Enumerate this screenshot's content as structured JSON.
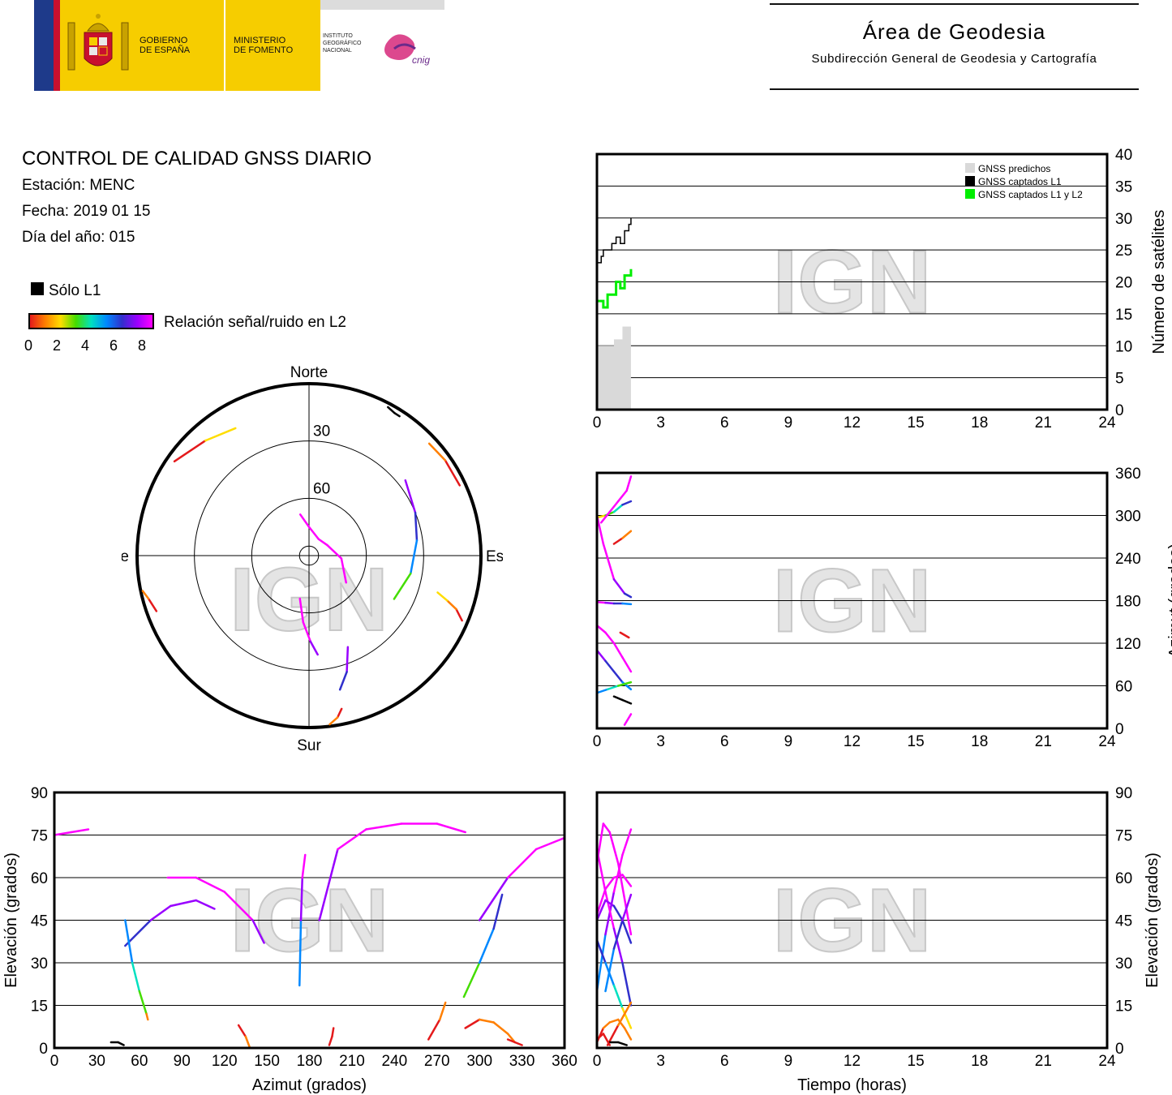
{
  "header": {
    "gov_line1": "GOBIERNO",
    "gov_line2": "DE ESPAÑA",
    "ministry_line1": "MINISTERIO",
    "ministry_line2": "DE FOMENTO",
    "institute_line1": "INSTITUTO",
    "institute_line2": "GEOGRÁFICO",
    "institute_line3": "NACIONAL",
    "cnig_logo_text": "cnig",
    "area_title": "Área de Geodesia",
    "area_subtitle": "Subdirección General de Geodesia y Cartografía",
    "colors": {
      "blue": "#1e3a8a",
      "red": "#c8102e",
      "yellow": "#f6cd00"
    }
  },
  "report": {
    "title": "CONTROL DE CALIDAD GNSS DIARIO",
    "station": "Estación: MENC",
    "date": "Fecha: 2019 01 15",
    "doy": "Día del año: 015"
  },
  "legend": {
    "l1_only": "Sólo L1",
    "snr_label": "Relación señal/ruido en L2",
    "snr_ticks": [
      "0",
      "2",
      "4",
      "6",
      "8"
    ],
    "snr_colors": [
      "#e41a1c",
      "#ff7f00",
      "#ffdd00",
      "#44dd00",
      "#00e0c0",
      "#0088ff",
      "#3030cc",
      "#9900ff",
      "#ff00ff"
    ]
  },
  "watermark": "IGN",
  "chart_data": [
    {
      "id": "skyplot",
      "type": "scatter",
      "projection": "polar",
      "labels": {
        "north": "Norte",
        "south": "Sur",
        "east": "Este",
        "west": "Oeste"
      },
      "ring_labels": [
        "30",
        "60"
      ],
      "rings_elev": [
        0,
        30,
        60,
        85
      ],
      "tracks": [
        {
          "az": [
            305,
            318,
            330
          ],
          "el": [
            4,
            9,
            13
          ],
          "snr": [
            0,
            2,
            3
          ]
        },
        {
          "az": [
            250,
            255,
            258
          ],
          "el": [
            5,
            3,
            1
          ],
          "snr": [
            0,
            1,
            1
          ]
        },
        {
          "az": [
            28,
            31,
            33
          ],
          "el": [
            2,
            3,
            3
          ],
          "snr": [
            -1,
            -1,
            -1
          ]
        },
        {
          "az": [
            65,
            55,
            47
          ],
          "el": [
            3,
            3,
            4
          ],
          "snr": [
            0,
            1,
            3
          ]
        },
        {
          "az": [
            52,
            68,
            82,
            100,
            117
          ],
          "el": [
            26,
            30,
            33,
            36,
            40
          ],
          "snr": [
            7,
            6,
            5,
            3,
            0
          ]
        },
        {
          "az": [
            113,
            110,
            108,
            106
          ],
          "el": [
            3,
            8,
            14,
            20
          ],
          "snr": [
            0,
            1,
            2,
            4
          ]
        },
        {
          "az": [
            157,
            162,
            167
          ],
          "el": [
            38,
            26,
            18
          ],
          "snr": [
            7,
            6,
            5
          ]
        },
        {
          "az": [
            168,
            170,
            173
          ],
          "el": [
            8,
            4,
            1
          ],
          "snr": [
            0,
            1,
            1
          ]
        },
        {
          "az": [
            192,
            185,
            179,
            175
          ],
          "el": [
            67,
            55,
            45,
            38
          ],
          "snr": [
            8,
            8,
            7,
            7
          ]
        },
        {
          "az": [
            -12,
            0,
            30,
            60,
            95,
            126
          ],
          "el": [
            68,
            75,
            80,
            79,
            73,
            66
          ],
          "snr": [
            8,
            8,
            8,
            8,
            8,
            8
          ]
        }
      ]
    },
    {
      "id": "satellite_count",
      "type": "area",
      "xlabel": "",
      "ylabel": "Número de satélites",
      "xlim": [
        0,
        24
      ],
      "ylim": [
        0,
        40
      ],
      "xticks": [
        "0",
        "3",
        "6",
        "9",
        "12",
        "15",
        "18",
        "21",
        "24"
      ],
      "yticks": [
        "0",
        "5",
        "10",
        "15",
        "20",
        "25",
        "30",
        "35",
        "40"
      ],
      "series": [
        {
          "name": "GNSS predichos",
          "color": "#d9d9d9",
          "x": [
            0,
            0.1,
            0.5,
            0.8,
            1.0,
            1.2,
            1.4,
            1.6
          ],
          "y": [
            10,
            10,
            10,
            11,
            11,
            13,
            13,
            14
          ]
        },
        {
          "name": "GNSS captados L1",
          "color": "#000000",
          "x": [
            0,
            0.1,
            0.2,
            0.3,
            0.5,
            0.7,
            0.9,
            1.1,
            1.3,
            1.5,
            1.6
          ],
          "y": [
            23,
            23,
            24,
            25,
            25,
            26,
            27,
            26,
            28,
            29,
            30
          ]
        },
        {
          "name": "GNSS captados L1 y L2",
          "color": "#00ee00",
          "x": [
            0,
            0.1,
            0.3,
            0.5,
            0.7,
            0.9,
            1.1,
            1.3,
            1.5,
            1.6
          ],
          "y": [
            17,
            17,
            16,
            18,
            18,
            20,
            19,
            21,
            21,
            22
          ]
        }
      ]
    },
    {
      "id": "azimuth_time",
      "type": "scatter",
      "xlabel": "",
      "ylabel": "Azimut (grados)",
      "xlim": [
        0,
        24
      ],
      "ylim": [
        0,
        360
      ],
      "xticks": [
        "0",
        "3",
        "6",
        "9",
        "12",
        "15",
        "18",
        "21",
        "24"
      ],
      "yticks": [
        "0",
        "60",
        "120",
        "180",
        "240",
        "300",
        "360"
      ],
      "tracks": [
        {
          "t": [
            0,
            0.4,
            0.8,
            1.2,
            1.6
          ],
          "v": [
            297,
            300,
            305,
            315,
            320
          ],
          "snr": [
            2,
            3,
            4,
            6,
            7
          ]
        },
        {
          "t": [
            0.2,
            0.6,
            1.0,
            1.4,
            1.6
          ],
          "v": [
            290,
            305,
            320,
            335,
            355
          ],
          "snr": [
            8,
            8,
            8,
            8,
            8
          ]
        },
        {
          "t": [
            0,
            0.3,
            0.8,
            1.3,
            1.6
          ],
          "v": [
            300,
            260,
            210,
            190,
            185
          ],
          "snr": [
            8,
            8,
            7,
            6,
            6
          ]
        },
        {
          "t": [
            0.8,
            1.2,
            1.6
          ],
          "v": [
            260,
            268,
            278
          ],
          "snr": [
            0,
            1,
            1
          ]
        },
        {
          "t": [
            0,
            0.4,
            0.8,
            1.2,
            1.6
          ],
          "v": [
            178,
            177,
            176,
            176,
            175
          ],
          "snr": [
            8,
            7,
            6,
            5,
            4
          ]
        },
        {
          "t": [
            0,
            0.4,
            0.8,
            1.2,
            1.6
          ],
          "v": [
            145,
            135,
            120,
            100,
            80
          ],
          "snr": [
            8,
            8,
            8,
            8,
            7
          ]
        },
        {
          "t": [
            0,
            0.4,
            0.8,
            1.2,
            1.6
          ],
          "v": [
            110,
            95,
            80,
            65,
            55
          ],
          "snr": [
            7,
            6,
            6,
            5,
            5
          ]
        },
        {
          "t": [
            0,
            0.5,
            1.0,
            1.6
          ],
          "v": [
            50,
            55,
            60,
            65
          ],
          "snr": [
            5,
            4,
            3,
            2
          ]
        },
        {
          "t": [
            0.8,
            1.2,
            1.6
          ],
          "v": [
            45,
            40,
            35
          ],
          "snr": [
            -1,
            -1,
            -1
          ]
        },
        {
          "t": [
            1.3,
            1.6
          ],
          "v": [
            5,
            20
          ],
          "snr": [
            8,
            8
          ]
        },
        {
          "t": [
            1.1,
            1.5
          ],
          "v": [
            135,
            128
          ],
          "snr": [
            0,
            2
          ]
        }
      ]
    },
    {
      "id": "elevation_azimuth",
      "type": "scatter",
      "xlabel": "Azimut (grados)",
      "ylabel": "Elevación (grados)",
      "xlim": [
        0,
        360
      ],
      "ylim": [
        0,
        90
      ],
      "xticks": [
        "0",
        "30",
        "60",
        "90",
        "120",
        "150",
        "180",
        "210",
        "240",
        "270",
        "300",
        "330",
        "360"
      ],
      "yticks": [
        "0",
        "15",
        "30",
        "45",
        "60",
        "75",
        "90"
      ],
      "tracks": [
        {
          "az": [
            0,
            12,
            24
          ],
          "el": [
            75,
            76,
            77
          ],
          "snr": [
            8,
            8,
            8
          ]
        },
        {
          "az": [
            50,
            68,
            82,
            100,
            113
          ],
          "el": [
            36,
            45,
            50,
            52,
            49
          ],
          "snr": [
            6,
            7,
            7,
            7,
            7
          ]
        },
        {
          "az": [
            80,
            100,
            120,
            140,
            148
          ],
          "el": [
            60,
            60,
            55,
            45,
            37
          ],
          "snr": [
            8,
            8,
            8,
            7,
            7
          ]
        },
        {
          "az": [
            50,
            55,
            60,
            65,
            66
          ],
          "el": [
            45,
            30,
            20,
            12,
            10
          ],
          "snr": [
            5,
            4,
            3,
            1,
            0
          ]
        },
        {
          "az": [
            173,
            174,
            175,
            177
          ],
          "el": [
            22,
            45,
            60,
            68
          ],
          "snr": [
            5,
            7,
            8,
            8
          ]
        },
        {
          "az": [
            187,
            200,
            220,
            245,
            270,
            290
          ],
          "el": [
            45,
            70,
            77,
            79,
            79,
            76
          ],
          "snr": [
            7,
            8,
            8,
            8,
            8,
            8
          ]
        },
        {
          "az": [
            300,
            320,
            340,
            360
          ],
          "el": [
            45,
            60,
            70,
            74
          ],
          "snr": [
            7,
            8,
            8,
            8
          ]
        },
        {
          "az": [
            289,
            300,
            310,
            316
          ],
          "el": [
            18,
            30,
            42,
            54
          ],
          "snr": [
            3,
            5,
            6,
            7
          ]
        },
        {
          "az": [
            264,
            272,
            276
          ],
          "el": [
            3,
            10,
            16
          ],
          "snr": [
            0,
            1,
            1
          ]
        },
        {
          "az": [
            290,
            300,
            310,
            320,
            325
          ],
          "el": [
            7,
            10,
            9,
            5,
            2
          ],
          "snr": [
            0,
            1,
            1,
            1,
            0
          ]
        },
        {
          "az": [
            130,
            135,
            138
          ],
          "el": [
            8,
            4,
            0
          ],
          "snr": [
            0,
            1,
            0
          ]
        },
        {
          "az": [
            194,
            196,
            197
          ],
          "el": [
            1,
            4,
            7
          ],
          "snr": [
            0,
            0,
            1
          ]
        },
        {
          "az": [
            40,
            45,
            49
          ],
          "el": [
            2,
            2,
            1
          ],
          "snr": [
            -1,
            -1,
            -1
          ]
        },
        {
          "az": [
            320,
            325,
            330
          ],
          "el": [
            3,
            2,
            1
          ],
          "snr": [
            0,
            0,
            0
          ]
        }
      ]
    },
    {
      "id": "elevation_time",
      "type": "scatter",
      "xlabel": "Tiempo (horas)",
      "ylabel": "Elevación (grados)",
      "xlim": [
        0,
        24
      ],
      "ylim": [
        0,
        90
      ],
      "xticks": [
        "0",
        "3",
        "6",
        "9",
        "12",
        "15",
        "18",
        "21",
        "24"
      ],
      "yticks": [
        "0",
        "15",
        "30",
        "45",
        "60",
        "75",
        "90"
      ],
      "tracks": [
        {
          "t": [
            0,
            0.3,
            0.6,
            1.0,
            1.6
          ],
          "v": [
            65,
            79,
            76,
            65,
            40
          ],
          "snr": [
            8,
            8,
            8,
            8,
            7
          ]
        },
        {
          "t": [
            0,
            0.4,
            0.8,
            1.2,
            1.6
          ],
          "v": [
            20,
            40,
            55,
            68,
            77
          ],
          "snr": [
            5,
            7,
            8,
            8,
            8
          ]
        },
        {
          "t": [
            0,
            0.4,
            0.8,
            1.2,
            1.6
          ],
          "v": [
            70,
            55,
            42,
            30,
            15
          ],
          "snr": [
            8,
            8,
            7,
            6,
            4
          ]
        },
        {
          "t": [
            0,
            0.4,
            0.8,
            1.2,
            1.6
          ],
          "v": [
            45,
            52,
            50,
            45,
            37
          ],
          "snr": [
            7,
            7,
            6,
            6,
            5
          ]
        },
        {
          "t": [
            0,
            0.4,
            0.8,
            1.2,
            1.6
          ],
          "v": [
            38,
            30,
            22,
            14,
            7
          ],
          "snr": [
            6,
            5,
            4,
            2,
            0
          ]
        },
        {
          "t": [
            0.4,
            0.8,
            1.2,
            1.6
          ],
          "v": [
            20,
            35,
            45,
            54
          ],
          "snr": [
            5,
            6,
            7,
            7
          ]
        },
        {
          "t": [
            0,
            0.4,
            0.8,
            1.2,
            1.6
          ],
          "v": [
            47,
            56,
            60,
            61,
            57
          ],
          "snr": [
            8,
            8,
            8,
            8,
            8
          ]
        },
        {
          "t": [
            0,
            0.3,
            0.6,
            1.0,
            1.3,
            1.6
          ],
          "v": [
            2,
            7,
            9,
            10,
            7,
            3
          ],
          "snr": [
            0,
            1,
            1,
            1,
            1,
            0
          ]
        },
        {
          "t": [
            0.5,
            1.0,
            1.6
          ],
          "v": [
            1,
            8,
            16
          ],
          "snr": [
            0,
            1,
            1
          ]
        },
        {
          "t": [
            0.6,
            1.0,
            1.4
          ],
          "v": [
            2,
            2,
            1
          ],
          "snr": [
            -1,
            -1,
            -1
          ]
        },
        {
          "t": [
            0,
            0.3,
            0.6
          ],
          "v": [
            3,
            5,
            1
          ],
          "snr": [
            0,
            0,
            0
          ]
        }
      ]
    }
  ]
}
